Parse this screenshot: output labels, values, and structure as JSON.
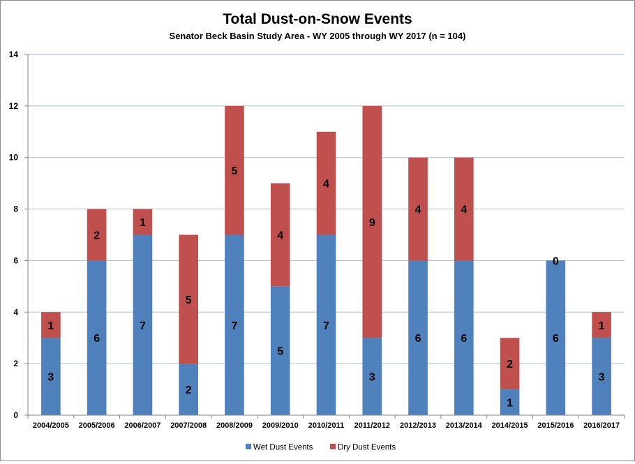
{
  "chart_data": {
    "type": "bar",
    "stacked": true,
    "title": "Total Dust-on-Snow Events",
    "subtitle": "Senator Beck Basin Study Area - WY 2005 through WY 2017 (n = 104)",
    "xlabel": "",
    "ylabel": "",
    "ylim": [
      0,
      14
    ],
    "yticks": [
      0,
      2,
      4,
      6,
      8,
      10,
      12,
      14
    ],
    "grid": true,
    "legend_position": "bottom",
    "categories": [
      "2004/2005",
      "2005/2006",
      "2006/2007",
      "2007/2008",
      "2008/2009",
      "2009/2010",
      "2010/2011",
      "2011/2012",
      "2012/2013",
      "2013/2014",
      "2014/2015",
      "2015/2016",
      "2016/2017"
    ],
    "series": [
      {
        "name": "Wet Dust Events",
        "color": "#4f81bd",
        "values": [
          3,
          6,
          7,
          2,
          7,
          5,
          7,
          3,
          6,
          6,
          1,
          6,
          3
        ]
      },
      {
        "name": "Dry Dust Events",
        "color": "#c0504d",
        "values": [
          1,
          2,
          1,
          5,
          5,
          4,
          4,
          9,
          4,
          4,
          2,
          0,
          1
        ]
      }
    ]
  }
}
